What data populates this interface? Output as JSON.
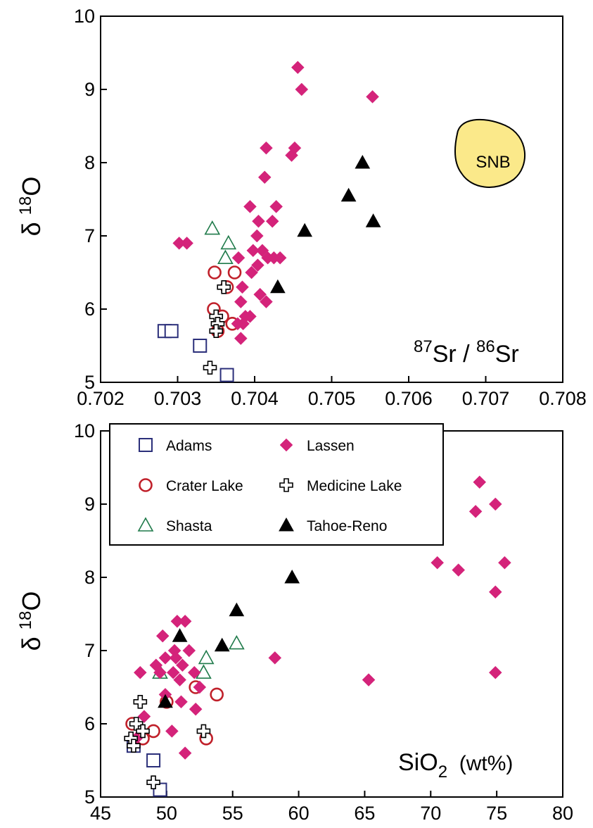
{
  "series_styles": [
    {
      "name": "Adams",
      "shape": "square-open",
      "color": "#2b2f7a"
    },
    {
      "name": "Crater Lake",
      "shape": "circle-open",
      "color": "#c0202a"
    },
    {
      "name": "Shasta",
      "shape": "triangle-open",
      "color": "#1f7a4a"
    },
    {
      "name": "Lassen",
      "shape": "diamond-filled",
      "color": "#d4237a"
    },
    {
      "name": "Medicine Lake",
      "shape": "cross-open",
      "color": "#000000"
    },
    {
      "name": "Tahoe-Reno",
      "shape": "triangle-filled",
      "color": "#000000"
    }
  ],
  "legend_items": [
    "Adams",
    "Lassen",
    "Crater Lake",
    "Medicine Lake",
    "Shasta",
    "Tahoe-Reno"
  ],
  "chart_data": [
    {
      "type": "scatter",
      "title": "",
      "ylabel": "δ 18O",
      "xlabel": "",
      "annotation": {
        "base1": "87",
        "sym1": "Sr",
        "sep": " / ",
        "base2": "86",
        "sym2": "Sr"
      },
      "region_label": "SNB",
      "region_color": "#fbe98a",
      "xlim": [
        0.702,
        0.708
      ],
      "ylim": [
        5,
        10
      ],
      "xticks": [
        "0.702",
        "0.703",
        "0.704",
        "0.705",
        "0.706",
        "0.707",
        "0.708"
      ],
      "yticks": [
        "5",
        "6",
        "7",
        "8",
        "9",
        "10"
      ],
      "series": [
        {
          "name": "Adams",
          "x": [
            0.70283,
            0.70292,
            0.70329,
            0.70364
          ],
          "y": [
            5.7,
            5.7,
            5.5,
            5.1
          ]
        },
        {
          "name": "Crater Lake",
          "x": [
            0.70348,
            0.70374,
            0.70364,
            0.70347,
            0.70352,
            0.70358,
            0.70371
          ],
          "y": [
            6.5,
            6.5,
            6.3,
            6.0,
            5.7,
            5.9,
            5.8
          ]
        },
        {
          "name": "Shasta",
          "x": [
            0.70345,
            0.70366,
            0.70362
          ],
          "y": [
            7.1,
            6.9,
            6.7
          ]
        },
        {
          "name": "Lassen",
          "x": [
            0.70456,
            0.70461,
            0.70553,
            0.70415,
            0.70452,
            0.70448,
            0.70413,
            0.70428,
            0.70394,
            0.70405,
            0.70423,
            0.70403,
            0.70312,
            0.70302,
            0.70398,
            0.7041,
            0.70417,
            0.70425,
            0.70433,
            0.70379,
            0.70396,
            0.70404,
            0.70384,
            0.70407,
            0.70415,
            0.70382,
            0.70388,
            0.70394,
            0.70378,
            0.70385,
            0.70382
          ],
          "y": [
            9.3,
            9.0,
            8.9,
            8.2,
            8.2,
            8.1,
            7.8,
            7.4,
            7.4,
            7.2,
            7.2,
            7.0,
            6.9,
            6.9,
            6.8,
            6.8,
            6.7,
            6.7,
            6.7,
            6.7,
            6.5,
            6.6,
            6.3,
            6.2,
            6.1,
            6.1,
            5.9,
            5.9,
            5.8,
            5.8,
            5.6
          ]
        },
        {
          "name": "Medicine Lake",
          "x": [
            0.7036,
            0.7035,
            0.70352,
            0.7035,
            0.70342
          ],
          "y": [
            6.3,
            5.9,
            5.8,
            5.7,
            5.2
          ]
        },
        {
          "name": "Tahoe-Reno",
          "x": [
            0.7054,
            0.70522,
            0.70554,
            0.70465,
            0.7043
          ],
          "y": [
            8.0,
            7.55,
            7.2,
            7.07,
            6.3
          ]
        }
      ]
    },
    {
      "type": "scatter",
      "title": "",
      "ylabel": "δ 18O",
      "xlabel": "",
      "annotation": {
        "base": "SiO",
        "sub": "2",
        "unit": "  (wt%)"
      },
      "xlim": [
        45,
        80
      ],
      "ylim": [
        5,
        10
      ],
      "xticks": [
        "45",
        "50",
        "55",
        "60",
        "65",
        "70",
        "75",
        "80"
      ],
      "yticks": [
        "5",
        "6",
        "7",
        "8",
        "9",
        "10"
      ],
      "series": [
        {
          "name": "Adams",
          "x": [
            47.5,
            49.0,
            49.5
          ],
          "y": [
            5.7,
            5.5,
            5.1
          ]
        },
        {
          "name": "Crater Lake",
          "x": [
            47.4,
            48.2,
            49.0,
            50.0,
            52.2,
            53.8,
            53.0
          ],
          "y": [
            6.0,
            5.8,
            5.9,
            6.3,
            6.5,
            6.4,
            5.8
          ]
        },
        {
          "name": "Shasta",
          "x": [
            49.5,
            53.0,
            52.8,
            55.3
          ],
          "y": [
            6.7,
            6.9,
            6.7,
            7.1
          ]
        },
        {
          "name": "Lassen",
          "x": [
            73.7,
            73.4,
            74.9,
            70.5,
            72.1,
            75.6,
            74.9,
            74.9,
            65.3,
            58.2,
            51.4,
            50.8,
            49.7,
            50.6,
            51.7,
            49.9,
            50.7,
            51.2,
            49.2,
            49.5,
            50.5,
            52.1,
            51.0,
            52.5,
            52.2,
            51.1,
            50.4,
            51.4,
            49.9,
            48.3,
            48.0,
            47.7
          ],
          "y": [
            9.3,
            8.9,
            9.0,
            8.2,
            8.1,
            8.2,
            7.8,
            6.7,
            6.6,
            6.9,
            7.4,
            7.4,
            7.2,
            7.0,
            7.0,
            6.9,
            6.9,
            6.8,
            6.8,
            6.7,
            6.7,
            6.7,
            6.6,
            6.5,
            6.2,
            6.3,
            5.9,
            5.6,
            6.4,
            6.1,
            6.7,
            5.8
          ]
        },
        {
          "name": "Medicine Lake",
          "x": [
            48.0,
            47.7,
            47.3,
            48.2,
            47.5,
            52.8,
            49.0
          ],
          "y": [
            6.3,
            6.0,
            5.8,
            5.9,
            5.7,
            5.9,
            5.2
          ]
        },
        {
          "name": "Tahoe-Reno",
          "x": [
            59.5,
            55.3,
            54.2,
            51.0,
            49.9
          ],
          "y": [
            8.0,
            7.55,
            7.07,
            7.2,
            6.3
          ]
        }
      ]
    }
  ]
}
